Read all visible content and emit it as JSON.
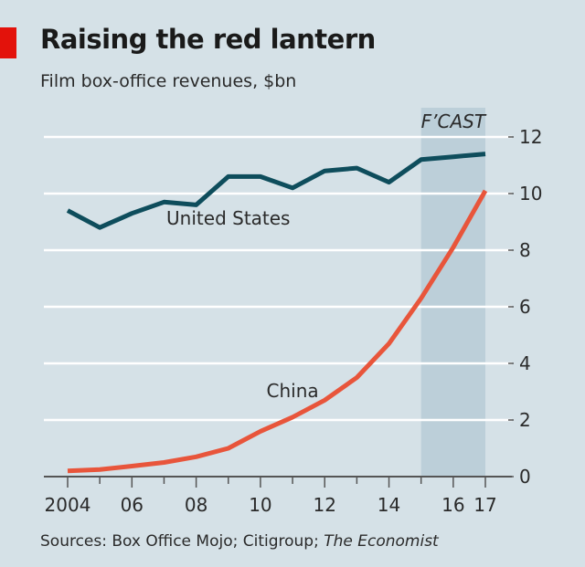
{
  "header": {
    "title": "Raising the red lantern",
    "subtitle": "Film box-office revenues, $bn"
  },
  "footer": {
    "source_prefix": "Sources: Box Office Mojo; Citigroup; ",
    "source_italic": "The Economist"
  },
  "chart_data": {
    "type": "line",
    "title": "Raising the red lantern",
    "subtitle": "Film box-office revenues, $bn",
    "x": [
      2004,
      2005,
      2006,
      2007,
      2008,
      2009,
      2010,
      2011,
      2012,
      2013,
      2014,
      2015,
      2016,
      2017
    ],
    "x_tick_labels": [
      {
        "year": 2004,
        "label": "2004"
      },
      {
        "year": 2006,
        "label": "06"
      },
      {
        "year": 2008,
        "label": "08"
      },
      {
        "year": 2010,
        "label": "10"
      },
      {
        "year": 2012,
        "label": "12"
      },
      {
        "year": 2014,
        "label": "14"
      },
      {
        "year": 2016,
        "label": "16"
      },
      {
        "year": 2017,
        "label": "17"
      }
    ],
    "y_ticks": [
      0,
      2,
      4,
      6,
      8,
      10,
      12
    ],
    "ylim": [
      0,
      12
    ],
    "y_axis_side": "right",
    "grid": true,
    "forecast": {
      "label": "F’CAST",
      "from": 2015,
      "to": 2017,
      "color": "#bccfd9"
    },
    "series": [
      {
        "name": "United States",
        "color": "#0e4d5c",
        "values": [
          9.4,
          8.8,
          9.3,
          9.7,
          9.6,
          10.6,
          10.6,
          10.2,
          10.8,
          10.9,
          10.4,
          11.2,
          11.3,
          11.4
        ]
      },
      {
        "name": "China",
        "color": "#e8553b",
        "values": [
          0.2,
          0.25,
          0.37,
          0.5,
          0.7,
          1.0,
          1.6,
          2.1,
          2.7,
          3.5,
          4.7,
          6.3,
          8.1,
          10.1
        ]
      }
    ],
    "series_labels": [
      {
        "series": "United States",
        "year": 2009,
        "value": 8.9
      },
      {
        "series": "China",
        "year": 2011,
        "value": 2.8
      }
    ]
  },
  "colors": {
    "background": "#d5e1e7",
    "brand_red": "#e3120b",
    "gridline": "#ffffff"
  }
}
